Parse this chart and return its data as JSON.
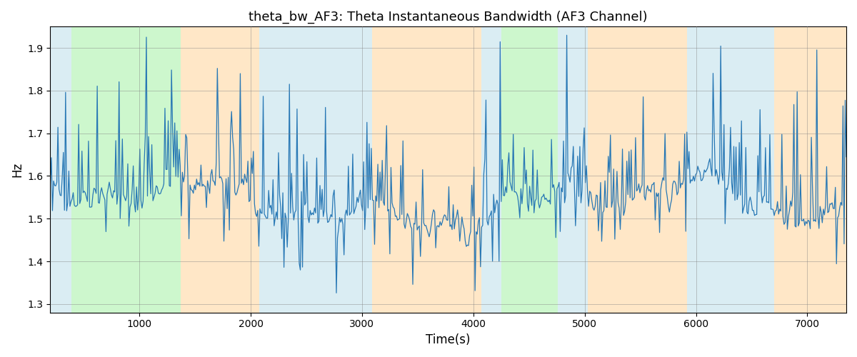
{
  "title": "theta_bw_AF3: Theta Instantaneous Bandwidth (AF3 Channel)",
  "xlabel": "Time(s)",
  "ylabel": "Hz",
  "xlim": [
    200,
    7350
  ],
  "ylim": [
    1.28,
    1.95
  ],
  "yticks": [
    1.3,
    1.4,
    1.5,
    1.6,
    1.7,
    1.8,
    1.9
  ],
  "xticks": [
    1000,
    2000,
    3000,
    4000,
    5000,
    6000,
    7000
  ],
  "line_color": "#2878b5",
  "line_width": 0.9,
  "regions": [
    {
      "start": 200,
      "end": 390,
      "color": "#add8e6",
      "alpha": 0.45
    },
    {
      "start": 390,
      "end": 1370,
      "color": "#90ee90",
      "alpha": 0.45
    },
    {
      "start": 1370,
      "end": 2080,
      "color": "#ffd59a",
      "alpha": 0.55
    },
    {
      "start": 2080,
      "end": 3090,
      "color": "#add8e6",
      "alpha": 0.45
    },
    {
      "start": 3090,
      "end": 4070,
      "color": "#ffd59a",
      "alpha": 0.55
    },
    {
      "start": 4070,
      "end": 4250,
      "color": "#add8e6",
      "alpha": 0.45
    },
    {
      "start": 4250,
      "end": 4760,
      "color": "#90ee90",
      "alpha": 0.45
    },
    {
      "start": 4760,
      "end": 5030,
      "color": "#add8e6",
      "alpha": 0.45
    },
    {
      "start": 5030,
      "end": 5920,
      "color": "#ffd59a",
      "alpha": 0.55
    },
    {
      "start": 5920,
      "end": 6700,
      "color": "#add8e6",
      "alpha": 0.45
    },
    {
      "start": 6700,
      "end": 7350,
      "color": "#ffd59a",
      "alpha": 0.55
    }
  ],
  "seed": 42,
  "n_points": 730,
  "t_start": 200,
  "t_end": 7350
}
